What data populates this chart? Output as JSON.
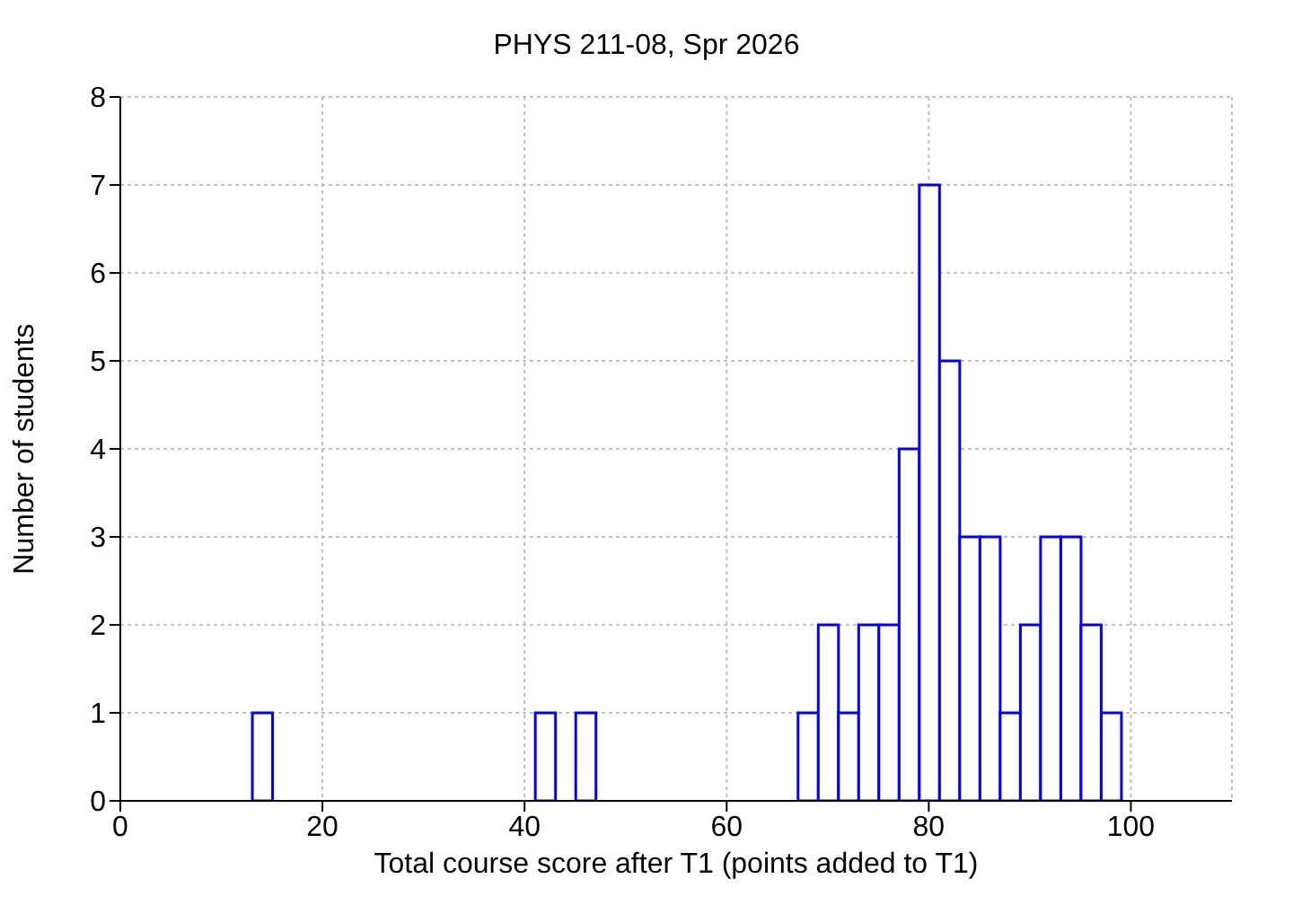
{
  "chart_data": {
    "type": "histogram",
    "title": "PHYS 211-08, Spr 2026",
    "xlabel": "Total course score after T1 (points added to T1)",
    "ylabel": "Number of students",
    "bins": [
      13,
      15,
      17,
      19,
      21,
      23,
      25,
      27,
      29,
      31,
      33,
      35,
      37,
      39,
      41,
      43,
      45,
      47,
      49,
      51,
      53,
      55,
      57,
      59,
      61,
      63,
      65,
      67,
      69,
      71,
      73,
      75,
      77,
      79,
      81,
      83,
      85,
      87,
      89,
      91,
      93,
      95,
      97,
      99
    ],
    "values": [
      1,
      0,
      0,
      0,
      0,
      0,
      0,
      0,
      0,
      0,
      0,
      0,
      0,
      0,
      1,
      0,
      1,
      0,
      0,
      0,
      0,
      0,
      0,
      0,
      0,
      0,
      0,
      1,
      2,
      1,
      2,
      2,
      4,
      7,
      5,
      3,
      3,
      1,
      2,
      3,
      3,
      2,
      1
    ],
    "color": "#0000ff",
    "xlim": [
      0,
      110
    ],
    "xticks": [
      0,
      20,
      40,
      60,
      80,
      100
    ],
    "ylim": [
      0,
      8
    ],
    "yticks": [
      0,
      1,
      2,
      3,
      4,
      5,
      6,
      7,
      8
    ],
    "grid": true
  }
}
